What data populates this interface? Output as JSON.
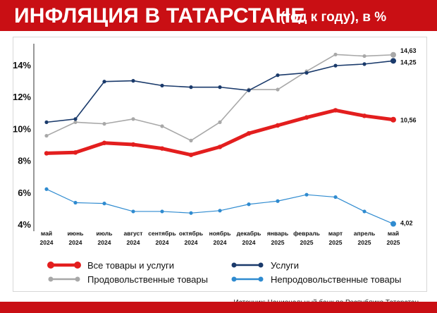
{
  "title": "ИНФЛЯЦИЯ В ТАТАРСТАНЕ",
  "subtitle": "(год к году), в %",
  "source": "Источник: Национальный банк по Республике Татарстан",
  "chart_data": {
    "type": "line",
    "categories": [
      [
        "май",
        "2024"
      ],
      [
        "июнь",
        "2024"
      ],
      [
        "июль",
        "2024"
      ],
      [
        "август",
        "2024"
      ],
      [
        "сентябрь",
        "2024"
      ],
      [
        "октябрь",
        "2024"
      ],
      [
        "ноябрь",
        "2024"
      ],
      [
        "декабрь",
        "2024"
      ],
      [
        "январь",
        "2025"
      ],
      [
        "февраль",
        "2025"
      ],
      [
        "март",
        "2025"
      ],
      [
        "апрель",
        "2025"
      ],
      [
        "май",
        "2025"
      ]
    ],
    "yticks": [
      "4%",
      "6%",
      "8%",
      "10%",
      "12%",
      "14%"
    ],
    "ylim": [
      4,
      14
    ],
    "grid": true,
    "legend_position": "bottom",
    "series": [
      {
        "name": "Все товары и услуги",
        "color": "#e31e1e",
        "values": [
          8.45,
          8.5,
          9.1,
          9.0,
          8.75,
          8.35,
          8.85,
          9.7,
          10.2,
          10.7,
          11.15,
          10.8,
          10.56
        ],
        "end_label": "10,56",
        "width": 5,
        "marker": true
      },
      {
        "name": "Продовольственные товары",
        "color": "#a8a8a8",
        "values": [
          9.55,
          10.4,
          10.3,
          10.6,
          10.15,
          9.25,
          10.4,
          12.45,
          12.45,
          13.6,
          14.65,
          14.55,
          14.63
        ],
        "end_label": "14,63",
        "width": 1.6,
        "marker": true
      },
      {
        "name": "Услуги",
        "color": "#1a3a6b",
        "values": [
          10.4,
          10.6,
          12.95,
          13.0,
          12.7,
          12.6,
          12.6,
          12.4,
          13.35,
          13.5,
          13.95,
          14.05,
          14.25
        ],
        "end_label": "14,25",
        "width": 1.6,
        "marker": true
      },
      {
        "name": "Непродовольственные товары",
        "color": "#2f8bd0",
        "values": [
          6.2,
          5.35,
          5.3,
          4.8,
          4.8,
          4.7,
          4.85,
          5.25,
          5.45,
          5.85,
          5.7,
          4.8,
          4.02
        ],
        "end_label": "4,02",
        "width": 1.2,
        "marker": true
      }
    ]
  }
}
